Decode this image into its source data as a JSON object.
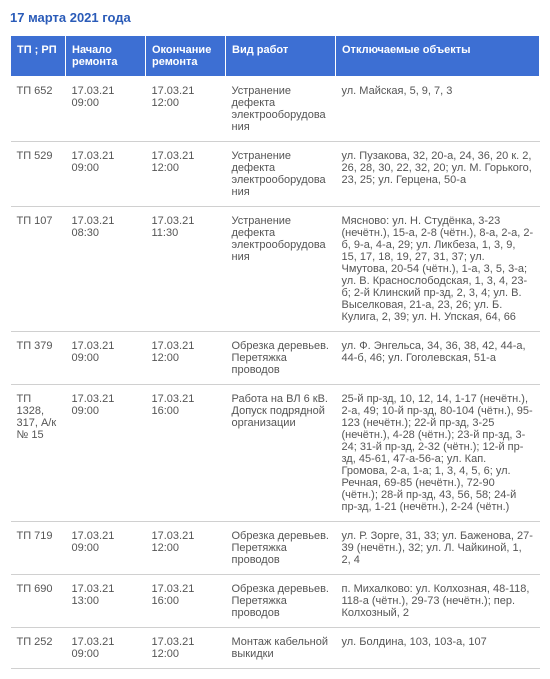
{
  "title": "17 марта 2021 года",
  "columns": [
    "ТП ; РП",
    "Начало ремонта",
    "Окончание ремонта",
    "Вид работ",
    "Отключаемые объекты"
  ],
  "rows": [
    {
      "tp": "ТП 652",
      "start": "17.03.21 09:00",
      "end": "17.03.21 12:00",
      "type": "Устранение дефекта электрооборудования",
      "obj": "ул. Майская, 5, 9, 7, 3"
    },
    {
      "tp": "ТП 529",
      "start": "17.03.21 09:00",
      "end": "17.03.21 12:00",
      "type": "Устранение дефекта электрооборудования",
      "obj": "ул. Пузакова, 32, 20-а, 24, 36, 20 к. 2, 26, 28, 30, 22, 32, 20; ул. М. Горького, 23, 25; ул. Герцена, 50-а"
    },
    {
      "tp": "ТП 107",
      "start": "17.03.21 08:30",
      "end": "17.03.21 11:30",
      "type": "Устранение дефекта электрооборудования",
      "obj": "Мясново: ул. Н. Студёнка, 3-23 (нечётн.), 15-а, 2-8 (чётн.), 8-а, 2-а, 2-б, 9-а, 4-а, 29; ул. Ликбеза, 1, 3, 9, 15, 17, 18, 19, 27, 31, 37; ул. Чмутова, 20-54 (чётн.), 1-а, 3, 5, 3-а; ул. В. Краснослободская, 1, 3, 4, 23-б; 2-й Клинский пр-зд, 2, 3, 4; ул. В. Выселковая, 21-а, 23, 26; ул. Б. Кулига, 2, 39; ул. Н. Упская, 64, 66"
    },
    {
      "tp": "ТП 379",
      "start": "17.03.21 09:00",
      "end": "17.03.21 12:00",
      "type": "Обрезка деревьев. Перетяжка проводов",
      "obj": "ул. Ф. Энгельса, 34, 36, 38, 42, 44-а, 44-б, 46; ул. Гоголевская, 51-а"
    },
    {
      "tp": "ТП 1328, 317, А/к № 15",
      "start": "17.03.21 09:00",
      "end": "17.03.21 16:00",
      "type": "Работа на ВЛ 6 кВ. Допуск подрядной организации",
      "obj": "25-й пр-зд, 10, 12, 14, 1-17 (нечётн.), 2-а, 49; 10-й пр-зд, 80-104 (чётн.), 95-123 (нечётн.); 22-й пр-зд, 3-25 (нечётн.), 4-28 (чётн.); 23-й пр-зд, 3-24; 31-й пр-зд, 2-32 (чётн.); 12-й пр-зд, 45-61, 47-а-56-а; ул. Кап. Громова, 2-а, 1-а; 1, 3, 4, 5, 6; ул. Речная, 69-85 (нечётн.), 72-90 (чётн.); 28-й пр-зд, 43, 56, 58; 24-й пр-зд, 1-21 (нечётн.), 2-24 (чётн.)"
    },
    {
      "tp": "ТП 719",
      "start": "17.03.21 09:00",
      "end": "17.03.21 12:00",
      "type": "Обрезка деревьев. Перетяжка проводов",
      "obj": "ул. Р. Зорге, 31, 33; ул. Баженова, 27-39 (нечётн.), 32; ул. Л. Чайкиной, 1, 2, 4"
    },
    {
      "tp": "ТП 690",
      "start": "17.03.21 13:00",
      "end": "17.03.21 16:00",
      "type": "Обрезка деревьев. Перетяжка проводов",
      "obj": "п. Михалково: ул. Колхозная, 48-118, 118-а (чётн.), 29-73 (нечётн.); пер. Колхозный, 2"
    },
    {
      "tp": "ТП 252",
      "start": "17.03.21 09:00",
      "end": "17.03.21 12:00",
      "type": "Монтаж кабельной выкидки",
      "obj": "ул. Болдина, 103, 103-а, 107"
    }
  ]
}
